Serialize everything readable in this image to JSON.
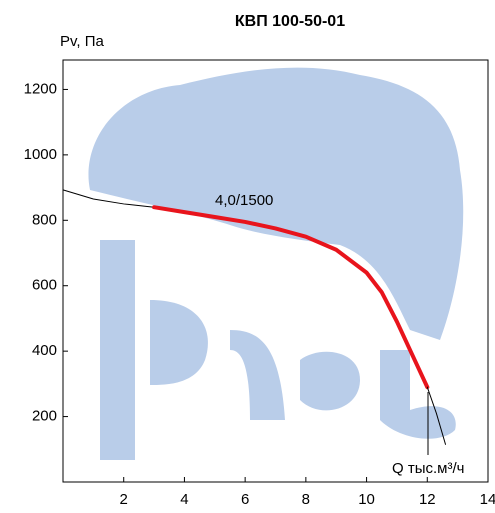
{
  "chart_data": {
    "type": "line",
    "title": "КВП 100-50-01",
    "y_label": "Pv, Па",
    "x_label": "Q тыс.м³/ч",
    "annotation": "4,0/1500",
    "xlim": [
      0,
      14
    ],
    "xticks": [
      2,
      4,
      6,
      8,
      10,
      12,
      14
    ],
    "ylim": [
      0,
      1290
    ],
    "yticks": [
      200,
      400,
      600,
      800,
      1000,
      1200
    ],
    "grid": false,
    "series": [
      {
        "color": "#000000",
        "width": 1,
        "x": [
          0,
          1,
          2,
          3
        ],
        "values": [
          893,
          865,
          850,
          840
        ]
      },
      {
        "color": "#e8141c",
        "width": 4,
        "x": [
          3,
          4,
          5,
          6,
          7,
          8,
          9,
          10,
          10.5,
          11,
          11.5,
          12
        ],
        "values": [
          840,
          825,
          810,
          795,
          775,
          750,
          710,
          640,
          580,
          490,
          390,
          290
        ]
      },
      {
        "color": "#000000",
        "width": 1,
        "x": [
          12,
          12.3,
          12.6
        ],
        "values": [
          290,
          210,
          115
        ]
      }
    ]
  }
}
